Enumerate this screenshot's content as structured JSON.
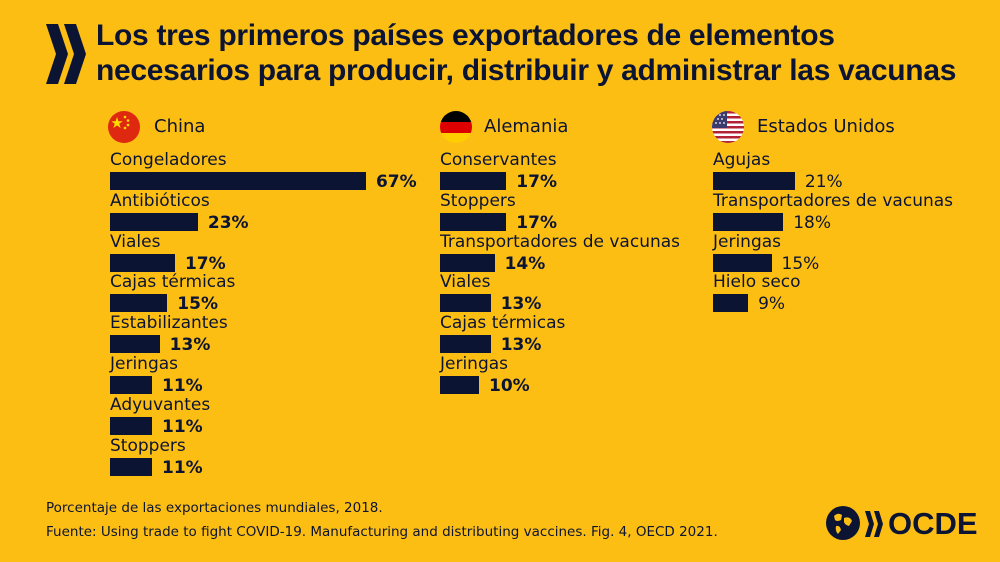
{
  "title": "Los tres primeros países exportadores de elementos necesarios para producir, distribuir y administrar las vacunas",
  "chart_data": [
    {
      "type": "bar",
      "country": "China",
      "flag_icon": "china-flag-icon",
      "categories": [
        "Congeladores",
        "Antibióticos",
        "Viales",
        "Cajas térmicas",
        "Estabilizantes",
        "Jeringas",
        "Adyuvantes",
        "Stoppers"
      ],
      "values": [
        67,
        23,
        17,
        15,
        13,
        11,
        11,
        11
      ],
      "value_labels": [
        "67%",
        "23%",
        "17%",
        "15%",
        "13%",
        "11%",
        "11%",
        "11%"
      ],
      "unit": "%"
    },
    {
      "type": "bar",
      "country": "Alemania",
      "flag_icon": "germany-flag-icon",
      "categories": [
        "Conservantes",
        "Stoppers",
        "Transportadores de vacunas",
        "Viales",
        "Cajas térmicas",
        "Jeringas"
      ],
      "values": [
        17,
        17,
        14,
        13,
        13,
        10
      ],
      "value_labels": [
        "17%",
        "17%",
        "14%",
        "13%",
        "13%",
        "10%"
      ],
      "unit": "%"
    },
    {
      "type": "bar",
      "country": "Estados Unidos",
      "flag_icon": "usa-flag-icon",
      "categories": [
        "Agujas",
        "Transportadores de vacunas",
        "Jeringas",
        "Hielo seco"
      ],
      "values": [
        21,
        18,
        15,
        9
      ],
      "value_labels": [
        "21%",
        "18%",
        "15%",
        "9%"
      ],
      "unit": "%"
    }
  ],
  "footnote": "Porcentaje de las exportaciones mundiales, 2018.",
  "source": "Fuente: Using trade to fight COVID-19. Manufacturing and distributing vaccines. Fig. 4, OECD 2021.",
  "logo_text": "OCDE",
  "colors": {
    "background": "#FDBE14",
    "bar": "#0B1433",
    "text": "#0B1433"
  }
}
